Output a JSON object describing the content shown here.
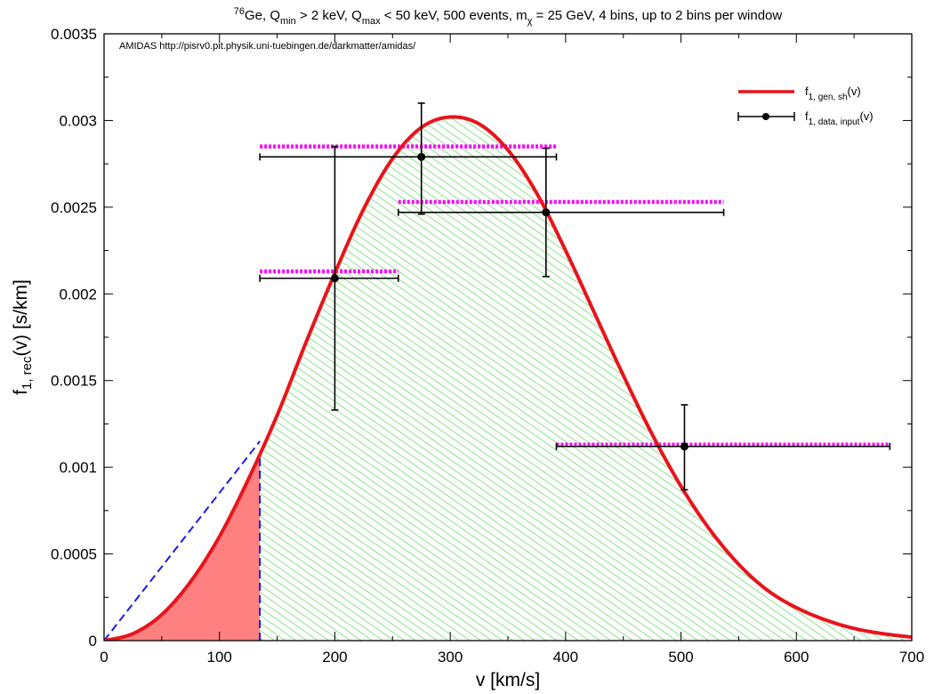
{
  "chart_data": {
    "type": "line",
    "title_parts": [
      {
        "text": "76",
        "shift": "super"
      },
      {
        "text": "Ge, Q",
        "shift": "base"
      },
      {
        "text": "min",
        "shift": "sub"
      },
      {
        "text": " > 2 keV, Q",
        "shift": "base"
      },
      {
        "text": "max",
        "shift": "sub"
      },
      {
        "text": " < 50 keV, 500 events, m",
        "shift": "base"
      },
      {
        "text": "χ",
        "shift": "sub"
      },
      {
        "text": " = 25 GeV, 4 bins, up to 2 bins per window",
        "shift": "base"
      }
    ],
    "credit": "AMIDAS   http://pisrv0.pit.physik.uni-tuebingen.de/darkmatter/amidas/",
    "xlabel": "v [km/s]",
    "ylabel_parts": [
      {
        "text": "f",
        "shift": "base"
      },
      {
        "text": "1, rec",
        "shift": "sub"
      },
      {
        "text": "(v) [s/km]",
        "shift": "base"
      }
    ],
    "xlim": [
      0,
      700
    ],
    "ylim": [
      0,
      0.0035
    ],
    "xticks": [
      0,
      100,
      200,
      300,
      400,
      500,
      600,
      700
    ],
    "xtick_labels": [
      "0",
      "100",
      "200",
      "300",
      "400",
      "500",
      "600",
      "700"
    ],
    "yticks": [
      0,
      0.0005,
      0.001,
      0.0015,
      0.002,
      0.0025,
      0.003,
      0.0035
    ],
    "ytick_labels": [
      "0",
      "0.0005",
      "0.001",
      "0.0015",
      "0.002",
      "0.0025",
      "0.003",
      "0.0035"
    ],
    "legend": {
      "placement": "top-right",
      "entries": [
        {
          "parts": [
            {
              "text": "f",
              "shift": "base"
            },
            {
              "text": "1, gen, sh",
              "shift": "sub"
            },
            {
              "text": "(v)",
              "shift": "base"
            }
          ]
        },
        {
          "parts": [
            {
              "text": "f",
              "shift": "base"
            },
            {
              "text": "1, data, input",
              "shift": "sub"
            },
            {
              "text": "(v)",
              "shift": "base"
            }
          ]
        }
      ]
    },
    "series": [
      {
        "key": "gen",
        "color": "#e8141b",
        "kind": "curve",
        "x": [
          0,
          25,
          50,
          75,
          100,
          125,
          150,
          175,
          200,
          225,
          250,
          275,
          300,
          325,
          350,
          375,
          400,
          425,
          450,
          475,
          500,
          525,
          550,
          575,
          600,
          625,
          650,
          675,
          700
        ],
        "y": [
          0,
          4e-05,
          0.00015,
          0.00034,
          0.0006,
          0.00093,
          0.0013,
          0.00172,
          0.00212,
          0.00249,
          0.00278,
          0.00296,
          0.00302,
          0.00298,
          0.00283,
          0.00258,
          0.00225,
          0.00189,
          0.00153,
          0.00119,
          0.00089,
          0.00064,
          0.00044,
          0.00029,
          0.00019,
          0.00012,
          7e-05,
          4e-05,
          2e-05
        ]
      },
      {
        "key": "data",
        "color": "#000000",
        "kind": "points",
        "points": [
          {
            "x": 200,
            "y": 0.00209,
            "xmin": 135,
            "xmax": 255,
            "ylo": 0.00133,
            "yhi": 0.00285
          },
          {
            "x": 275,
            "y": 0.00279,
            "xmin": 135,
            "xmax": 392,
            "ylo": 0.00246,
            "yhi": 0.0031
          },
          {
            "x": 383,
            "y": 0.00247,
            "xmin": 255,
            "xmax": 537,
            "ylo": 0.0021,
            "yhi": 0.00284
          },
          {
            "x": 503,
            "y": 0.00112,
            "xmin": 392,
            "xmax": 681,
            "ylo": 0.00087,
            "yhi": 0.00136
          }
        ]
      }
    ],
    "window_levels": {
      "color": "#ff00ff",
      "segments": [
        {
          "x0": 135,
          "x1": 255,
          "y": 0.00213
        },
        {
          "x0": 135,
          "x1": 392,
          "y": 0.00285
        },
        {
          "x0": 255,
          "x1": 537,
          "y": 0.00253
        },
        {
          "x0": 392,
          "x1": 681,
          "y": 0.00113
        }
      ]
    },
    "shaded_regions": [
      {
        "name": "low-velocity region",
        "color": "#ff8080",
        "x0": 0,
        "x1": 135,
        "style": "solid"
      },
      {
        "name": "hatched region",
        "color": "#22cc22",
        "x0": 135,
        "x1": 700,
        "style": "hatch"
      }
    ],
    "cutoff": {
      "x": 135,
      "color": "#1a1ae6",
      "slope_line": {
        "x0": 0,
        "y0": 0,
        "x1": 135,
        "y1": 0.00115
      }
    }
  }
}
